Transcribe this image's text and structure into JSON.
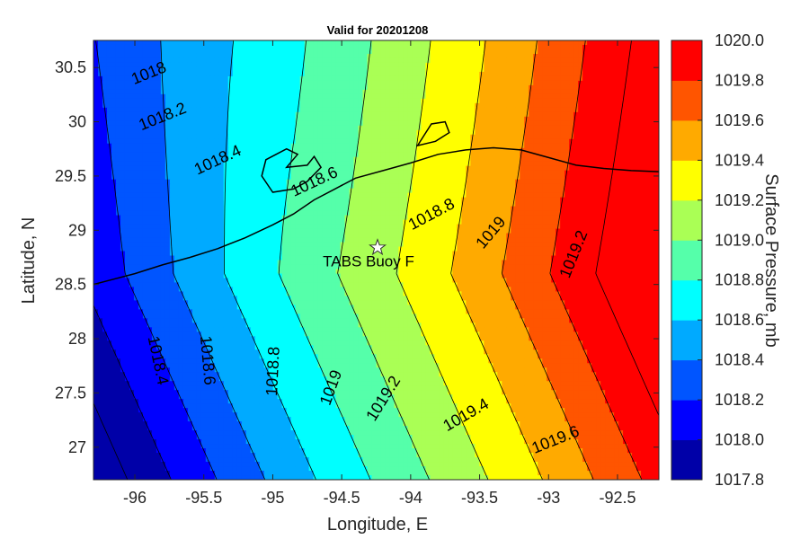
{
  "title": "Valid for 20201208",
  "xlabel": "Longitude, E",
  "ylabel": "Latitude, N",
  "colorbar_label": "Surface Pressure, mb",
  "chart_data": {
    "type": "heatmap",
    "title": "Valid for 20201208",
    "xlabel": "Longitude, E",
    "ylabel": "Latitude, N",
    "xlim": [
      -96.3,
      -92.2
    ],
    "ylim": [
      26.7,
      30.75
    ],
    "xticks": [
      -96,
      -95.5,
      -95,
      -94.5,
      -94,
      -93.5,
      -93,
      -92.5
    ],
    "xtick_labels": [
      "-96",
      "-95.5",
      "-95",
      "-94.5",
      "-94",
      "-93.5",
      "-93",
      "-92.5"
    ],
    "yticks": [
      27,
      27.5,
      28,
      28.5,
      29,
      29.5,
      30,
      30.5
    ],
    "ytick_labels": [
      "27",
      "27.5",
      "28",
      "28.5",
      "29",
      "29.5",
      "30",
      "30.5"
    ],
    "levels": [
      1017.8,
      1018.0,
      1018.2,
      1018.4,
      1018.6,
      1018.8,
      1019.0,
      1019.2,
      1019.4,
      1019.6,
      1019.8,
      1020.0
    ],
    "colorbar_tick_labels": [
      "1017.8",
      "1018.0",
      "1018.2",
      "1018.4",
      "1018.6",
      "1018.8",
      "1019.0",
      "1019.2",
      "1019.4",
      "1019.6",
      "1019.8",
      "1020.0"
    ],
    "band_colors": [
      "#0000a8",
      "#0000ff",
      "#0055ff",
      "#00aaff",
      "#00ffff",
      "#55ffaa",
      "#aaff55",
      "#ffff00",
      "#ffaa00",
      "#ff5500",
      "#ff0000"
    ],
    "contour_labels": [
      {
        "text": "1018",
        "lon": -95.9,
        "lat": 30.45,
        "angle": -22
      },
      {
        "text": "1018.2",
        "lon": -95.8,
        "lat": 30.05,
        "angle": -22
      },
      {
        "text": "1018.4",
        "lon": -95.4,
        "lat": 29.65,
        "angle": -25
      },
      {
        "text": "1018.6",
        "lon": -94.7,
        "lat": 29.45,
        "angle": -25
      },
      {
        "text": "1018.8",
        "lon": -93.85,
        "lat": 29.15,
        "angle": -28
      },
      {
        "text": "1019",
        "lon": -93.42,
        "lat": 28.98,
        "angle": -50
      },
      {
        "text": "1019.2",
        "lon": -92.82,
        "lat": 28.78,
        "angle": -68
      },
      {
        "text": "1018.4",
        "lon": -95.83,
        "lat": 27.8,
        "angle": 78
      },
      {
        "text": "1018.6",
        "lon": -95.47,
        "lat": 27.8,
        "angle": 85
      },
      {
        "text": "1018.8",
        "lon": -95.0,
        "lat": 27.7,
        "angle": -87
      },
      {
        "text": "1019",
        "lon": -94.58,
        "lat": 27.55,
        "angle": -70
      },
      {
        "text": "1019.2",
        "lon": -94.2,
        "lat": 27.45,
        "angle": -58
      },
      {
        "text": "1019.4",
        "lon": -93.6,
        "lat": 27.3,
        "angle": -30
      },
      {
        "text": "1019.6",
        "lon": -92.95,
        "lat": 27.07,
        "angle": -22
      }
    ],
    "station": {
      "name": "TABS Buoy F",
      "lon": -94.24,
      "lat": 28.84
    },
    "coastline": [
      [
        -96.3,
        28.5
      ],
      [
        -96.0,
        28.6
      ],
      [
        -95.8,
        28.68
      ],
      [
        -95.6,
        28.75
      ],
      [
        -95.4,
        28.83
      ],
      [
        -95.2,
        28.93
      ],
      [
        -95.0,
        29.05
      ],
      [
        -94.85,
        29.15
      ],
      [
        -94.7,
        29.28
      ],
      [
        -94.55,
        29.38
      ],
      [
        -94.4,
        29.48
      ],
      [
        -94.2,
        29.55
      ],
      [
        -94.0,
        29.62
      ],
      [
        -93.8,
        29.7
      ],
      [
        -93.6,
        29.74
      ],
      [
        -93.4,
        29.76
      ],
      [
        -93.2,
        29.74
      ],
      [
        -93.0,
        29.67
      ],
      [
        -92.8,
        29.6
      ],
      [
        -92.6,
        29.57
      ],
      [
        -92.4,
        29.55
      ],
      [
        -92.2,
        29.54
      ]
    ],
    "galveston_bay": [
      [
        -95.0,
        29.35
      ],
      [
        -95.08,
        29.5
      ],
      [
        -95.05,
        29.65
      ],
      [
        -94.9,
        29.75
      ],
      [
        -94.82,
        29.7
      ],
      [
        -94.9,
        29.58
      ],
      [
        -94.75,
        29.6
      ],
      [
        -94.7,
        29.68
      ],
      [
        -94.65,
        29.58
      ],
      [
        -94.75,
        29.45
      ],
      [
        -94.85,
        29.38
      ],
      [
        -95.0,
        29.35
      ]
    ],
    "sabine_lake": [
      [
        -93.95,
        29.78
      ],
      [
        -93.9,
        29.88
      ],
      [
        -93.85,
        29.98
      ],
      [
        -93.75,
        30.0
      ],
      [
        -93.72,
        29.9
      ],
      [
        -93.82,
        29.82
      ],
      [
        -93.95,
        29.78
      ]
    ]
  }
}
